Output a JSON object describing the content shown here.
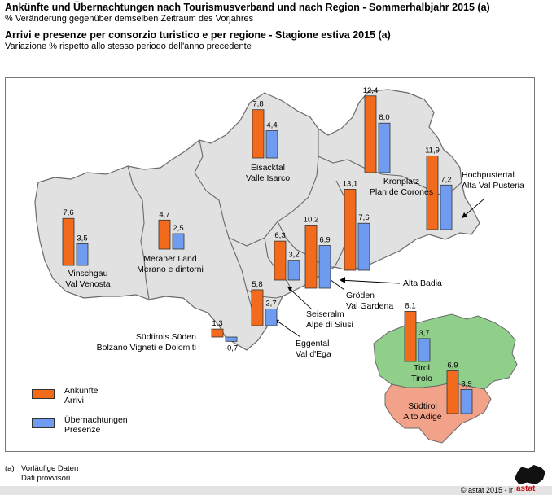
{
  "header": {
    "title_de": "Ankünfte und Übernachtungen nach Tourismusverband und nach Region - Sommerhalbjahr 2015 (a)",
    "subtitle_de": "% Veränderung gegenüber demselben Zeitraum des Vorjahres",
    "title_it": "Arrivi e presenze per consorzio turistico e per regione - Stagione estiva 2015 (a)",
    "subtitle_it": "Variazione % rispetto allo stesso periodo dell'anno precedente"
  },
  "legend": {
    "arrivals_de": "Ankünfte",
    "arrivals_it": "Arrivi",
    "nights_de": "Übernachtungen",
    "nights_it": "Presenze"
  },
  "colors": {
    "arrivals": "#f26b1d",
    "nights": "#6f9bf0",
    "map_fill": "#e1e1e1",
    "tirol_fill": "#8fcf8a",
    "suedtirol_fill": "#f2a288"
  },
  "chart_data": [
    {
      "type": "bar",
      "series_names": [
        "Ankünfte / Arrivi",
        "Übernachtungen / Presenze"
      ],
      "groups": [
        {
          "name_de": "Vinschgau",
          "name_it": "Val Venosta",
          "arrivals": 7.6,
          "nights": 3.5,
          "arrivals_label": "7,6",
          "nights_label": "3,5"
        },
        {
          "name_de": "Meraner Land",
          "name_it": "Merano e dintorni",
          "arrivals": 4.7,
          "nights": 2.5,
          "arrivals_label": "4,7",
          "nights_label": "2,5"
        },
        {
          "name_de": "Eisacktal",
          "name_it": "Valle Isarco",
          "arrivals": 7.8,
          "nights": 4.4,
          "arrivals_label": "7,8",
          "nights_label": "4,4"
        },
        {
          "name_de": "Kronplatz",
          "name_it": "Plan de Corones",
          "arrivals": 12.4,
          "nights": 8.0,
          "arrivals_label": "12,4",
          "nights_label": "8,0"
        },
        {
          "name_de": "Hochpustertal",
          "name_it": "Alta Val Pusteria",
          "arrivals": 11.9,
          "nights": 7.2,
          "arrivals_label": "11,9",
          "nights_label": "7,2"
        },
        {
          "name_de": "Alta Badia",
          "name_it": "",
          "arrivals": 13.1,
          "nights": 7.6,
          "arrivals_label": "13,1",
          "nights_label": "7,6"
        },
        {
          "name_de": "Gröden",
          "name_it": "Val Gardena",
          "arrivals": 10.2,
          "nights": 6.9,
          "arrivals_label": "10,2",
          "nights_label": "6,9"
        },
        {
          "name_de": "Seiseralm",
          "name_it": "Alpe di Siusi",
          "arrivals": 6.3,
          "nights": 3.2,
          "arrivals_label": "6,3",
          "nights_label": "3,2"
        },
        {
          "name_de": "Eggental",
          "name_it": "Val d'Ega",
          "arrivals": 5.8,
          "nights": 2.7,
          "arrivals_label": "5,8",
          "nights_label": "2,7"
        },
        {
          "name_de": "Südtirols Süden",
          "name_it": "Bolzano Vigneti e Dolomiti",
          "arrivals": 1.3,
          "nights": -0.7,
          "arrivals_label": "1,3",
          "nights_label": "-0,7"
        }
      ],
      "regions": [
        {
          "name_de": "Tirol",
          "name_it": "Tirolo",
          "arrivals": 8.1,
          "nights": 3.7,
          "arrivals_label": "8,1",
          "nights_label": "3,7"
        },
        {
          "name_de": "Südtirol",
          "name_it": "Alto Adige",
          "arrivals": 6.9,
          "nights": 3.9,
          "arrivals_label": "6,9",
          "nights_label": "3,9"
        }
      ]
    }
  ],
  "footnote": {
    "marker": "(a)",
    "line_de": "Vorläufige Daten",
    "line_it": "Dati provvisori"
  },
  "copyright": "©  astat 2015 - lr",
  "logo_text": "astat"
}
